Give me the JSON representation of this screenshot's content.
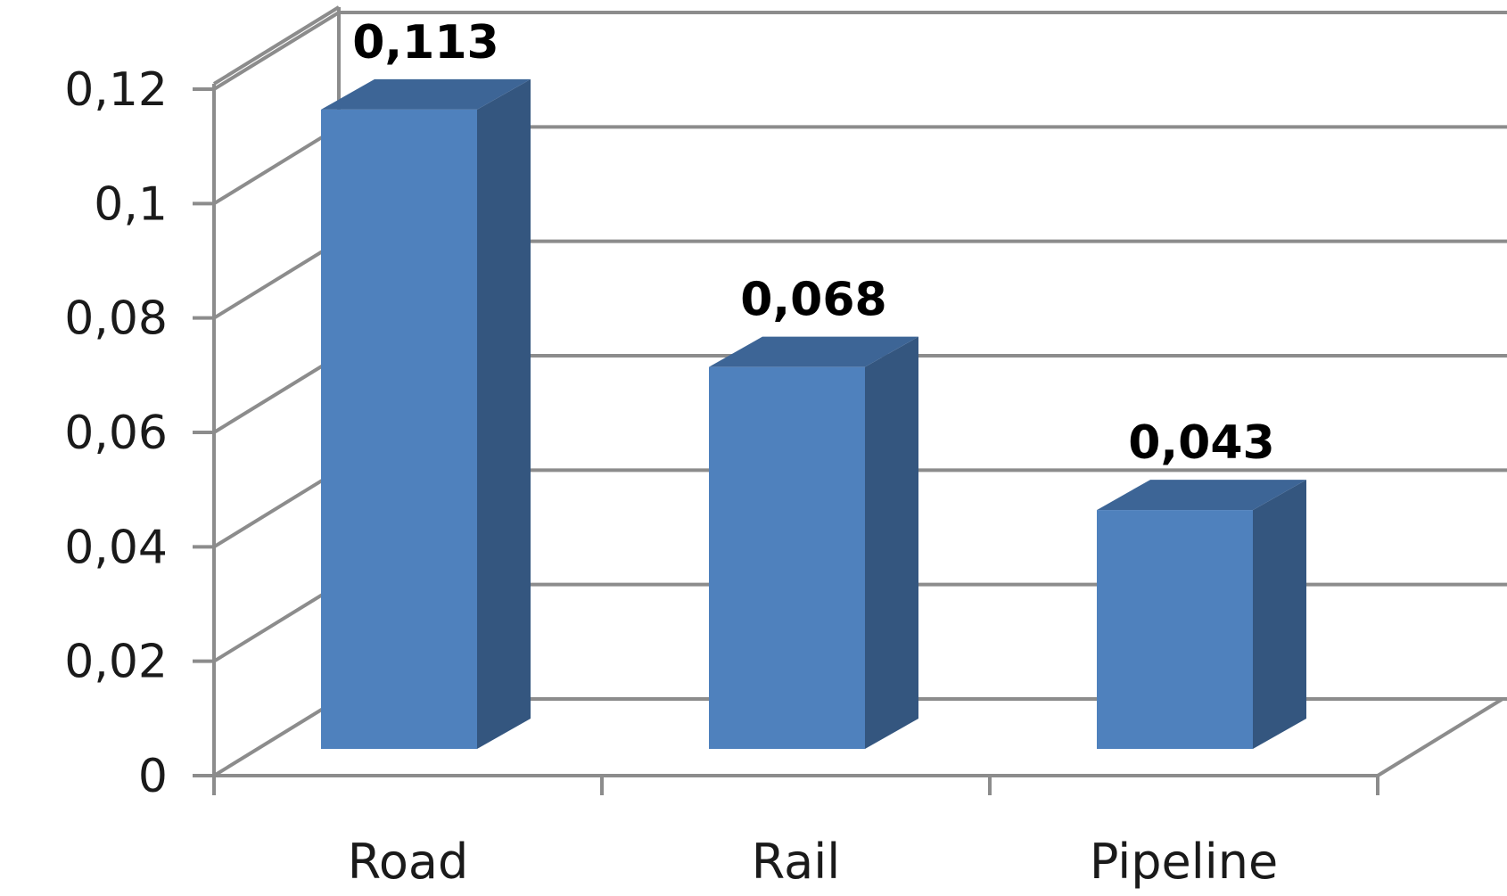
{
  "chart_data": {
    "type": "bar",
    "style": "3d-column",
    "categories": [
      "Road",
      "Rail",
      "Pipeline"
    ],
    "values": [
      0.113,
      0.068,
      0.043
    ],
    "data_labels": [
      "0,113",
      "0,068",
      "0,043"
    ],
    "title": "",
    "xlabel": "",
    "ylabel": "",
    "ylim": [
      0,
      0.12
    ],
    "yticks": [
      0,
      0.02,
      0.04,
      0.06,
      0.08,
      0.1,
      0.12
    ],
    "ytick_labels": [
      "0",
      "0,02",
      "0,04",
      "0,06",
      "0,08",
      "0,1",
      "0,12"
    ],
    "grid": true,
    "legend": false,
    "colors": {
      "bar_front": "#4f81bd",
      "bar_side": "#34567f",
      "bar_top": "#3d6596",
      "grid": "#8c8c8c"
    }
  }
}
